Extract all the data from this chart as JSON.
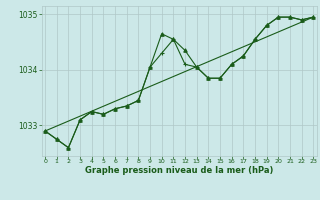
{
  "line1": {
    "x": [
      0,
      1,
      2,
      3,
      4,
      5,
      6,
      7,
      8,
      9,
      10,
      11,
      12,
      13,
      14,
      15,
      16,
      17,
      18,
      19,
      20,
      21,
      22,
      23
    ],
    "y": [
      1032.9,
      1032.75,
      1032.6,
      1033.1,
      1033.25,
      1033.2,
      1033.3,
      1033.35,
      1033.45,
      1034.05,
      1034.65,
      1034.55,
      1034.35,
      1034.05,
      1033.85,
      1033.85,
      1034.1,
      1034.25,
      1034.55,
      1034.8,
      1034.95,
      1034.95,
      1034.9,
      1034.95
    ],
    "color": "#1a5c1a",
    "marker": "^",
    "linestyle": "-",
    "linewidth": 0.8,
    "markersize": 2.5
  },
  "line2": {
    "x": [
      0,
      1,
      2,
      3,
      4,
      5,
      6,
      7,
      8,
      9,
      10,
      11,
      12,
      13,
      14,
      15,
      16,
      17,
      18,
      19,
      20,
      21,
      22,
      23
    ],
    "y": [
      1032.9,
      1032.75,
      1032.6,
      1033.1,
      1033.25,
      1033.2,
      1033.3,
      1033.35,
      1033.45,
      1034.05,
      1034.3,
      1034.55,
      1034.1,
      1034.05,
      1033.85,
      1033.85,
      1034.1,
      1034.25,
      1034.55,
      1034.8,
      1034.95,
      1034.95,
      1034.9,
      1034.95
    ],
    "color": "#1a5c1a",
    "marker": "+",
    "linestyle": "-",
    "linewidth": 0.8,
    "markersize": 3.5
  },
  "line3": {
    "x": [
      0,
      23
    ],
    "y": [
      1032.9,
      1034.95
    ],
    "color": "#1a5c1a",
    "marker": "None",
    "linestyle": "-",
    "linewidth": 0.8,
    "markersize": 0
  },
  "xlim": [
    -0.3,
    23.3
  ],
  "ylim": [
    1032.45,
    1035.15
  ],
  "yticks": [
    1033,
    1034,
    1035
  ],
  "xticks": [
    0,
    1,
    2,
    3,
    4,
    5,
    6,
    7,
    8,
    9,
    10,
    11,
    12,
    13,
    14,
    15,
    16,
    17,
    18,
    19,
    20,
    21,
    22,
    23
  ],
  "xlabel": "Graphe pression niveau de la mer (hPa)",
  "bg_color": "#cce8e8",
  "grid_color": "#b0c8c8",
  "line_color": "#1a5c1a",
  "tick_color": "#1a5c1a",
  "label_color": "#1a5c1a"
}
